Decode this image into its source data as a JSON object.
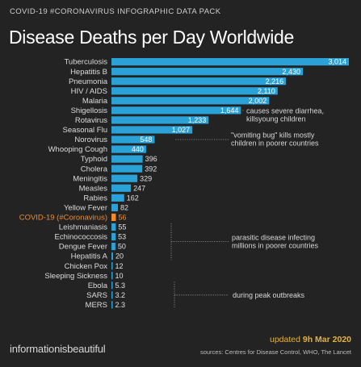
{
  "header": {
    "kicker": "COVID-19 #CORONAVIRUS INFOGRAPHIC DATA PACK",
    "title": "Disease Deaths per Day Worldwide"
  },
  "footer": {
    "brand": "informationisbeautiful",
    "updated_prefix": "updated ",
    "updated_date": "9h Mar 2020",
    "sources": "sources: Centres for Disease Control, WHO, The Lancet"
  },
  "colors": {
    "bar": "#2aa2d8",
    "highlight": "#f08a2c",
    "value_on_bar": "#ffffff",
    "value_outside": "#e0e0e0"
  },
  "chart_data": {
    "type": "bar",
    "orientation": "horizontal",
    "title": "Disease Deaths per Day Worldwide",
    "highlight": "COVID-19 (#Coronavirus)",
    "categories": [
      "Tuberculosis",
      "Hepatitis B",
      "Pneumonia",
      "HIV / AIDS",
      "Malaria",
      "Shigellosis",
      "Rotavirus",
      "Seasonal Flu",
      "Norovirus",
      "Whooping Cough",
      "Typhoid",
      "Cholera",
      "Meningitis",
      "Measles",
      "Rabies",
      "Yellow Fever",
      "COVID-19 (#Coronavirus)",
      "Leishmaniasis",
      "Echinococcosis",
      "Dengue Fever",
      "Hepatitis A",
      "Chicken Pox",
      "Sleeping Sickness",
      "Ebola",
      "SARS",
      "MERS"
    ],
    "values": [
      3014,
      2430,
      2216,
      2110,
      2002,
      1644,
      1233,
      1027,
      548,
      440,
      396,
      392,
      329,
      247,
      162,
      82,
      56,
      55,
      53,
      50,
      20,
      12,
      10,
      5.3,
      3.2,
      2.3
    ],
    "value_labels": [
      "3,014",
      "2,430",
      "2,216",
      "2,110",
      "2,002",
      "1,644",
      "1,233",
      "1,027",
      "548",
      "440",
      "396",
      "392",
      "329",
      "247",
      "162",
      "82",
      "56",
      "55",
      "53",
      "50",
      "20",
      "12",
      "10",
      "5.3",
      "3.2",
      "2.3"
    ],
    "xlim": [
      0,
      3014
    ],
    "annotations": [
      {
        "category": "Shigellosis",
        "lines": [
          "causes severe diarrhea,",
          "killsyoung children"
        ]
      },
      {
        "category": "Norovirus",
        "lines": [
          "\"vomiting bug\" kills mostly",
          "children in poorer countries"
        ]
      },
      {
        "category": "Leishmaniasis",
        "lines": [
          "parasitic disease infecting",
          "millions in poorer countries"
        ]
      },
      {
        "category": "Ebola",
        "lines": [
          "during peak outbreaks"
        ]
      }
    ]
  }
}
